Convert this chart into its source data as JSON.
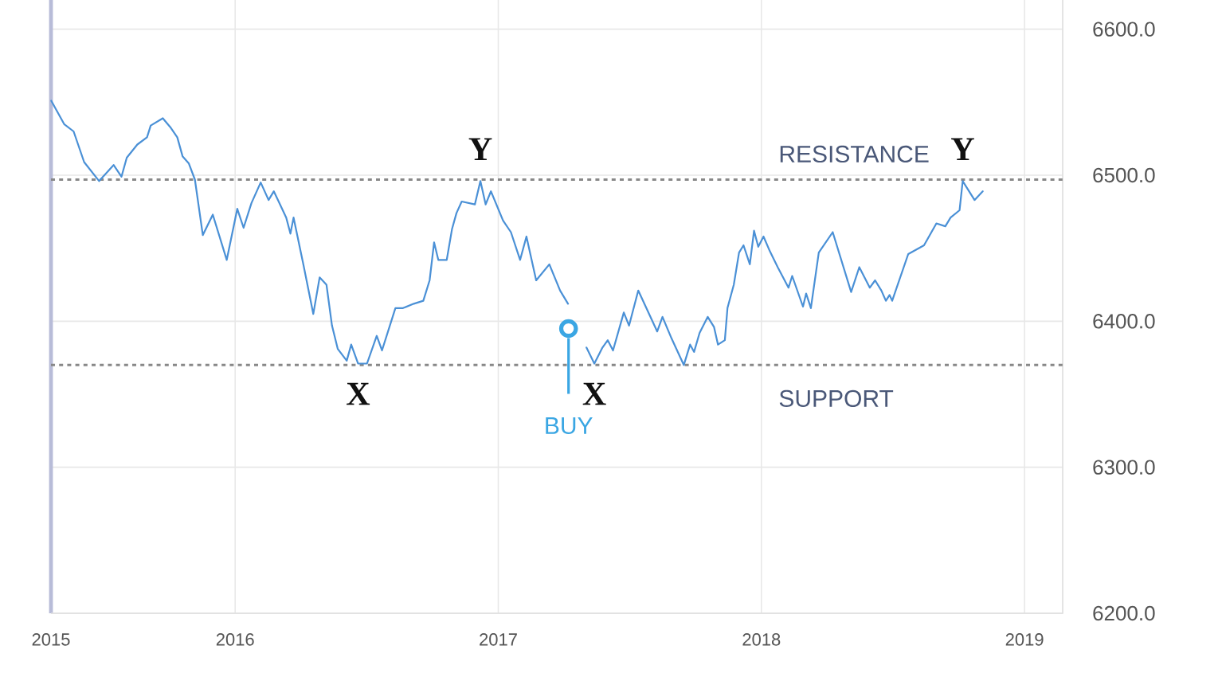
{
  "chart_data": {
    "type": "line",
    "x": [
      2015.301,
      2015.35,
      2015.386,
      2015.426,
      2015.483,
      2015.538,
      2015.568,
      2015.588,
      2015.628,
      2015.665,
      2015.679,
      2015.725,
      2015.753,
      2015.78,
      2015.8,
      2015.824,
      2015.847,
      2015.877,
      2015.915,
      2015.968,
      2016.008,
      2016.032,
      2016.062,
      2016.097,
      2016.127,
      2016.147,
      2016.194,
      2016.21,
      2016.222,
      2016.259,
      2016.297,
      2016.321,
      2016.347,
      2016.368,
      2016.39,
      2016.424,
      2016.441,
      2016.467,
      2016.501,
      2016.538,
      2016.558,
      2016.609,
      2016.638,
      2016.679,
      2016.715,
      2016.739,
      2016.756,
      2016.772,
      2016.804,
      2016.824,
      2016.841,
      2016.861,
      2016.911,
      2016.932,
      2016.952,
      2016.972,
      2017.018,
      2017.048,
      2017.083,
      2017.107,
      2017.144,
      2017.194,
      2017.235,
      2017.265,
      2017.297,
      2017.335,
      2017.365,
      2017.396,
      2017.416,
      2017.436,
      2017.477,
      2017.497,
      2017.532,
      2017.604,
      2017.624,
      2017.659,
      2017.705,
      2017.729,
      2017.744,
      2017.765,
      2017.796,
      2017.82,
      2017.835,
      2017.861,
      2017.871,
      2017.895,
      2017.915,
      2017.932,
      2017.956,
      2017.972,
      2017.988,
      2018.008,
      2018.032,
      2018.062,
      2018.103,
      2018.117,
      2018.158,
      2018.17,
      2018.188,
      2018.218,
      2018.271,
      2018.341,
      2018.372,
      2018.412,
      2018.432,
      2018.456,
      2018.473,
      2018.487,
      2018.497,
      2018.558,
      2018.618,
      2018.665,
      2018.699,
      2018.719,
      2018.753,
      2018.765,
      2018.81,
      2018.841
    ],
    "series": [
      {
        "color": "#4a90d6",
        "values": [
          6551,
          6535,
          6530,
          6509,
          6496,
          6507,
          6499,
          6512,
          6521,
          6526,
          6534,
          6539,
          6533,
          6526,
          6513,
          6508,
          6497,
          6459,
          6473,
          6442,
          6477,
          6464,
          6481,
          6495,
          6483,
          6489,
          6471,
          6460,
          6471,
          6439,
          6405,
          6430,
          6425,
          6397,
          6381,
          6373,
          6384,
          6371,
          6371,
          6390,
          6380,
          6409,
          6409,
          6412,
          6414,
          6428,
          6454,
          6442,
          6442,
          6463,
          6474,
          6482,
          6480,
          6496,
          6480,
          6489,
          6469,
          6461,
          6442,
          6458,
          6428,
          6439,
          6421,
          6412,
          null,
          6382,
          6371,
          6382,
          6387,
          6380,
          6406,
          6397,
          6421,
          6393,
          6403,
          6388,
          6370,
          6384,
          6379,
          6392,
          6403,
          6396,
          6384,
          6387,
          6409,
          6425,
          6447,
          6452,
          6439,
          6462,
          6451,
          6458,
          6448,
          6437,
          6423,
          6431,
          6410,
          6419,
          6409,
          6447,
          6461,
          6420,
          6437,
          6423,
          6428,
          6421,
          6414,
          6418,
          6414,
          6446,
          6452,
          6467,
          6465,
          6471,
          6476,
          6496,
          6483,
          6489
        ]
      },
      {
        "type": "scatter",
        "name": "BUY",
        "color": "#3aa6e3",
        "x": [
          2017.267
        ],
        "values": [
          6395
        ],
        "marker": "circle"
      }
    ],
    "xlim": [
      2015.3,
      2019.145
    ],
    "ylim": [
      6200,
      6620
    ],
    "xticks": [
      {
        "value": 2015.3,
        "label": "2015"
      },
      2016,
      2017,
      2018,
      2019
    ],
    "yticks": [
      {
        "value": 6200,
        "label": "6200.0"
      },
      {
        "value": 6300,
        "label": "6300.0"
      },
      {
        "value": 6400,
        "label": "6400.0"
      },
      {
        "value": 6500,
        "label": "6500.0"
      },
      {
        "value": 6600,
        "label": "6600.0"
      }
    ],
    "grid": true,
    "ref_lines": [
      {
        "axis": "y",
        "value": 6497,
        "label": "RESISTANCE",
        "color": "#888888",
        "line_style": "dotted"
      },
      {
        "axis": "y",
        "value": 6370,
        "label": "SUPPORT",
        "color": "#888888",
        "line_style": "dotted"
      }
    ],
    "annotations": [
      {
        "text": "Y",
        "x": 2016.932,
        "y": 6496
      },
      {
        "text": "X",
        "x": 2016.467,
        "y": 6371
      },
      {
        "text": "X",
        "x": 2017.365,
        "y": 6371
      },
      {
        "text": "Y",
        "x": 2018.765,
        "y": 6496
      }
    ]
  }
}
